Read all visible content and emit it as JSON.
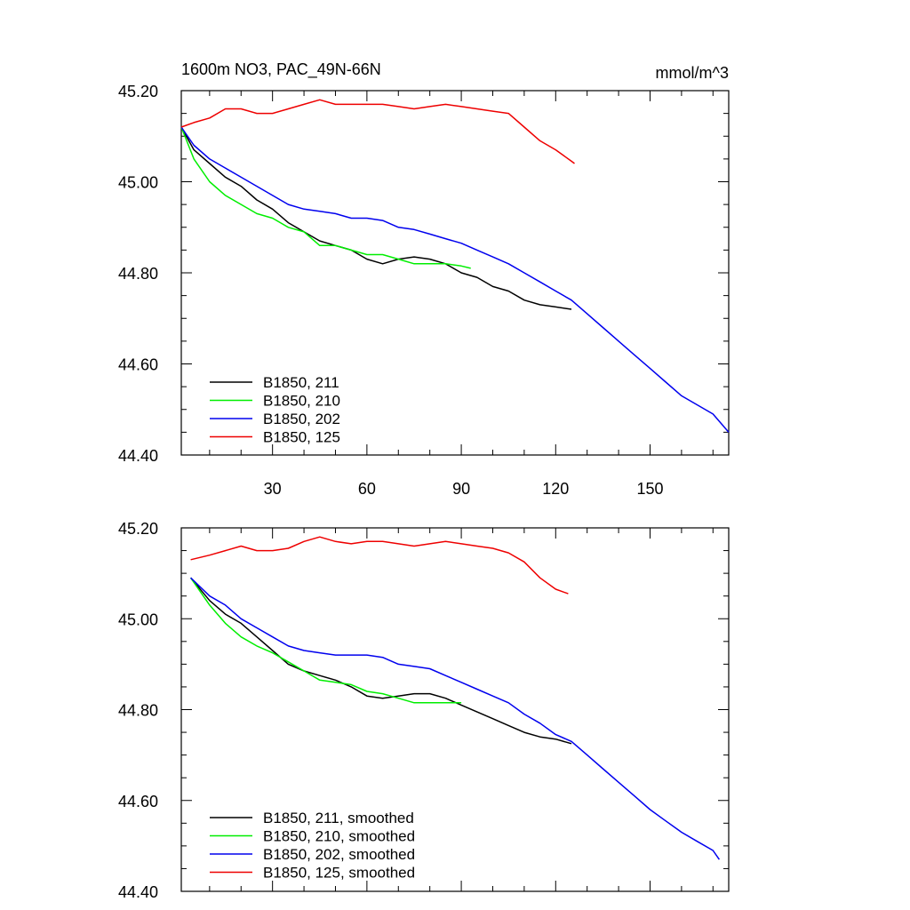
{
  "chart_data": [
    {
      "type": "line",
      "title": "1600m NO3, PAC_49N-66N",
      "units": "mmol/m^3",
      "xlim": [
        1,
        175
      ],
      "ylim": [
        44.4,
        45.2
      ],
      "yticks": [
        "45.20",
        "45.00",
        "44.80",
        "44.60",
        "44.40"
      ],
      "xticks": [
        "30",
        "60",
        "90",
        "120",
        "150"
      ],
      "series": [
        {
          "name": "B1850, 211",
          "color": "#000000",
          "x": [
            1,
            5,
            10,
            15,
            20,
            25,
            30,
            35,
            40,
            45,
            50,
            55,
            60,
            65,
            70,
            75,
            80,
            85,
            90,
            95,
            100,
            105,
            110,
            115,
            120,
            125
          ],
          "y": [
            45.12,
            45.07,
            45.04,
            45.01,
            44.99,
            44.96,
            44.94,
            44.91,
            44.89,
            44.87,
            44.86,
            44.85,
            44.83,
            44.82,
            44.83,
            44.835,
            44.83,
            44.82,
            44.8,
            44.79,
            44.77,
            44.76,
            44.74,
            44.73,
            44.725,
            44.72
          ]
        },
        {
          "name": "B1850, 210",
          "color": "#00ee00",
          "x": [
            1,
            5,
            10,
            15,
            20,
            25,
            30,
            35,
            40,
            45,
            50,
            55,
            60,
            65,
            70,
            75,
            80,
            85,
            90,
            93
          ],
          "y": [
            45.12,
            45.05,
            45.0,
            44.97,
            44.95,
            44.93,
            44.92,
            44.9,
            44.89,
            44.86,
            44.86,
            44.85,
            44.84,
            44.84,
            44.83,
            44.82,
            44.82,
            44.82,
            44.815,
            44.81
          ]
        },
        {
          "name": "B1850, 202",
          "color": "#0000ee",
          "x": [
            1,
            5,
            10,
            15,
            20,
            25,
            30,
            35,
            40,
            45,
            50,
            55,
            60,
            65,
            70,
            75,
            80,
            85,
            90,
            95,
            100,
            105,
            110,
            115,
            120,
            125,
            130,
            135,
            140,
            145,
            150,
            155,
            160,
            165,
            170,
            175
          ],
          "y": [
            45.12,
            45.08,
            45.05,
            45.03,
            45.01,
            44.99,
            44.97,
            44.95,
            44.94,
            44.935,
            44.93,
            44.92,
            44.92,
            44.915,
            44.9,
            44.895,
            44.885,
            44.875,
            44.865,
            44.85,
            44.835,
            44.82,
            44.8,
            44.78,
            44.76,
            44.74,
            44.71,
            44.68,
            44.65,
            44.62,
            44.59,
            44.56,
            44.53,
            44.51,
            44.49,
            44.45
          ]
        },
        {
          "name": "B1850, 125",
          "color": "#ee0000",
          "x": [
            1,
            5,
            10,
            15,
            20,
            25,
            30,
            35,
            40,
            45,
            50,
            55,
            60,
            65,
            70,
            75,
            80,
            85,
            90,
            95,
            100,
            105,
            110,
            115,
            120,
            125,
            126
          ],
          "y": [
            45.12,
            45.13,
            45.14,
            45.16,
            45.16,
            45.15,
            45.15,
            45.16,
            45.17,
            45.18,
            45.17,
            45.17,
            45.17,
            45.17,
            45.165,
            45.16,
            45.165,
            45.17,
            45.165,
            45.16,
            45.155,
            45.15,
            45.12,
            45.09,
            45.07,
            45.045,
            45.04
          ]
        }
      ]
    },
    {
      "type": "line",
      "xlim": [
        1,
        175
      ],
      "ylim": [
        44.4,
        45.2
      ],
      "yticks": [
        "45.20",
        "45.00",
        "44.80",
        "44.60",
        "44.40"
      ],
      "series": [
        {
          "name": "B1850, 211, smoothed",
          "color": "#000000",
          "x": [
            4,
            10,
            15,
            20,
            25,
            30,
            35,
            40,
            45,
            50,
            55,
            60,
            65,
            70,
            75,
            80,
            85,
            90,
            95,
            100,
            105,
            110,
            115,
            120,
            125
          ],
          "y": [
            45.09,
            45.04,
            45.01,
            44.99,
            44.96,
            44.93,
            44.9,
            44.885,
            44.875,
            44.865,
            44.85,
            44.83,
            44.825,
            44.83,
            44.835,
            44.835,
            44.825,
            44.81,
            44.795,
            44.78,
            44.765,
            44.75,
            44.74,
            44.735,
            44.725
          ]
        },
        {
          "name": "B1850, 210, smoothed",
          "color": "#00ee00",
          "x": [
            4,
            10,
            15,
            20,
            25,
            30,
            35,
            40,
            45,
            50,
            55,
            60,
            65,
            70,
            75,
            80,
            85,
            90
          ],
          "y": [
            45.09,
            45.03,
            44.99,
            44.96,
            44.94,
            44.925,
            44.905,
            44.885,
            44.865,
            44.86,
            44.855,
            44.84,
            44.835,
            44.825,
            44.815,
            44.815,
            44.815,
            44.815
          ]
        },
        {
          "name": "B1850, 202, smoothed",
          "color": "#0000ee",
          "x": [
            4,
            10,
            15,
            20,
            25,
            30,
            35,
            40,
            45,
            50,
            55,
            60,
            65,
            70,
            75,
            80,
            85,
            90,
            95,
            100,
            105,
            110,
            115,
            120,
            125,
            130,
            135,
            140,
            145,
            150,
            155,
            160,
            165,
            170,
            172
          ],
          "y": [
            45.09,
            45.05,
            45.03,
            45.0,
            44.98,
            44.96,
            44.94,
            44.93,
            44.925,
            44.92,
            44.92,
            44.92,
            44.915,
            44.9,
            44.895,
            44.89,
            44.875,
            44.86,
            44.845,
            44.83,
            44.815,
            44.79,
            44.77,
            44.745,
            44.73,
            44.7,
            44.67,
            44.64,
            44.61,
            44.58,
            44.555,
            44.53,
            44.51,
            44.49,
            44.47
          ]
        },
        {
          "name": "B1850, 125, smoothed",
          "color": "#ee0000",
          "x": [
            4,
            10,
            15,
            20,
            25,
            30,
            35,
            40,
            45,
            50,
            55,
            60,
            65,
            70,
            75,
            80,
            85,
            90,
            95,
            100,
            105,
            110,
            115,
            120,
            124
          ],
          "y": [
            45.13,
            45.14,
            45.15,
            45.16,
            45.15,
            45.15,
            45.155,
            45.17,
            45.18,
            45.17,
            45.165,
            45.17,
            45.17,
            45.165,
            45.16,
            45.165,
            45.17,
            45.165,
            45.16,
            45.155,
            45.145,
            45.125,
            45.09,
            45.065,
            45.055
          ]
        }
      ]
    }
  ]
}
